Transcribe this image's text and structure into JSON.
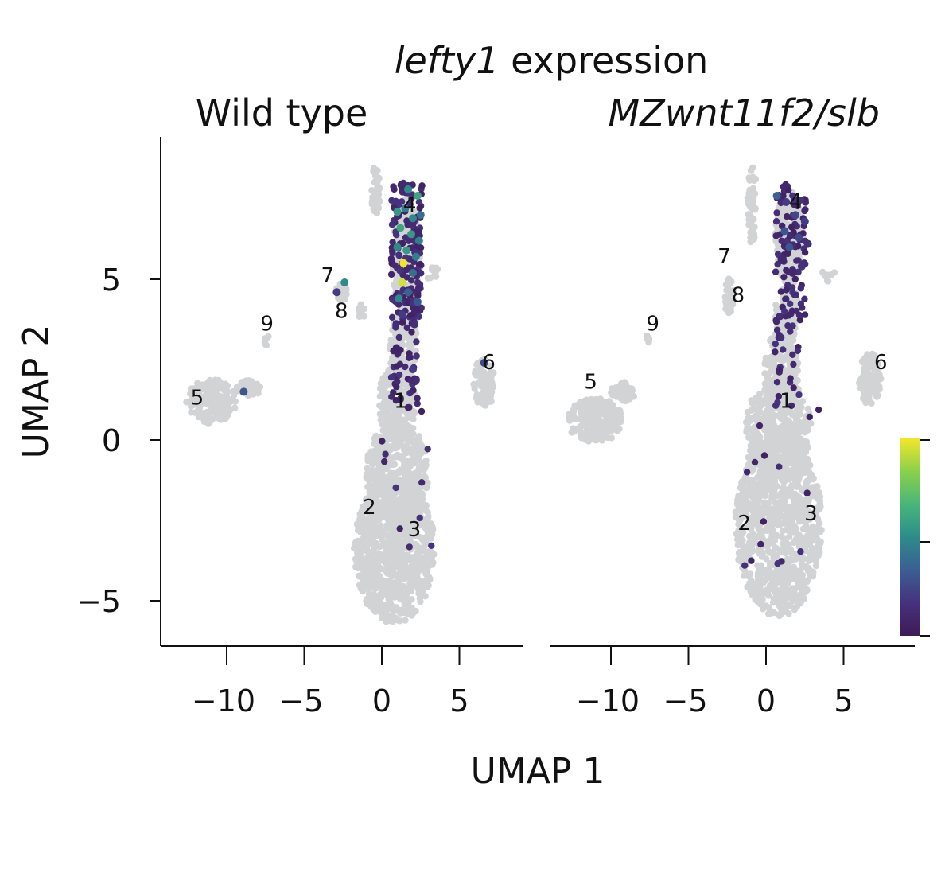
{
  "chart_data": {
    "type": "scatter",
    "title_gene": "lefty1",
    "title_rest": " expression",
    "xlabel": "UMAP 1",
    "ylabel": "UMAP 2",
    "xlim": [
      -14.5,
      9
    ],
    "ylim": [
      -6.5,
      9.5
    ],
    "xticks": [
      -10,
      -5,
      0,
      5
    ],
    "yticks": [
      -5,
      0,
      5
    ],
    "xtick_labels": [
      "−10",
      "−5",
      "0",
      "5"
    ],
    "ytick_labels": [
      "−5",
      "0",
      "5"
    ],
    "background_color": "#d2d3d5",
    "colorscale": [
      "#3e1a56",
      "#46327e",
      "#3b5e94",
      "#2d8c8a",
      "#48b67a",
      "#8ad14a",
      "#f3e62a"
    ],
    "panels": [
      {
        "title": "Wild type",
        "title_color": "#111111",
        "clusters": [
          {
            "label": "1",
            "x": 1.2,
            "y": 1.0
          },
          {
            "label": "2",
            "x": -0.8,
            "y": -2.3
          },
          {
            "label": "3",
            "x": 2.1,
            "y": -3.0
          },
          {
            "label": "4",
            "x": 1.8,
            "y": 7.1
          },
          {
            "label": "5",
            "x": -11.9,
            "y": 1.1
          },
          {
            "label": "6",
            "x": 6.9,
            "y": 2.2
          },
          {
            "label": "7",
            "x": -3.5,
            "y": 4.9
          },
          {
            "label": "8",
            "x": -2.6,
            "y": 3.8
          },
          {
            "label": "9",
            "x": -7.4,
            "y": 3.4
          }
        ],
        "expressing_cells": [
          {
            "x": 1.7,
            "y": 7.8,
            "v": 0.5
          },
          {
            "x": 2.3,
            "y": 7.6,
            "v": 0.6
          },
          {
            "x": 1.0,
            "y": 7.1,
            "v": 0.55
          },
          {
            "x": 1.5,
            "y": 7.2,
            "v": 0.45
          },
          {
            "x": 2.0,
            "y": 6.9,
            "v": 0.5
          },
          {
            "x": 2.5,
            "y": 7.0,
            "v": 0.4
          },
          {
            "x": 1.2,
            "y": 6.6,
            "v": 0.6
          },
          {
            "x": 1.9,
            "y": 6.4,
            "v": 0.55
          },
          {
            "x": 2.4,
            "y": 6.2,
            "v": 0.45
          },
          {
            "x": 1.0,
            "y": 6.0,
            "v": 0.5
          },
          {
            "x": 1.6,
            "y": 5.9,
            "v": 0.55
          },
          {
            "x": 2.2,
            "y": 5.7,
            "v": 0.45
          },
          {
            "x": 1.4,
            "y": 5.5,
            "v": 1.0
          },
          {
            "x": 1.3,
            "y": 4.9,
            "v": 0.95
          },
          {
            "x": 2.0,
            "y": 5.2,
            "v": 0.4
          },
          {
            "x": 1.1,
            "y": 4.4,
            "v": 0.5
          },
          {
            "x": 1.7,
            "y": 4.6,
            "v": 0.35
          },
          {
            "x": 2.3,
            "y": 4.3,
            "v": 0.3
          },
          {
            "x": -2.4,
            "y": 4.9,
            "v": 0.5
          },
          {
            "x": -2.9,
            "y": 4.6,
            "v": 0.2
          },
          {
            "x": 1.3,
            "y": 3.9,
            "v": 0.2
          },
          {
            "x": 2.1,
            "y": 3.6,
            "v": 0.15
          },
          {
            "x": -8.9,
            "y": 1.5,
            "v": 0.3
          },
          {
            "x": 6.6,
            "y": 2.4,
            "v": 0.25
          },
          {
            "x": 2.0,
            "y": 2.2,
            "v": 0.2
          }
        ]
      },
      {
        "title": "MZwnt11f2/slb",
        "title_color": "#c9a04e",
        "clusters": [
          {
            "label": "1",
            "x": 1.3,
            "y": 1.0
          },
          {
            "label": "2",
            "x": -1.4,
            "y": -2.8
          },
          {
            "label": "3",
            "x": 2.9,
            "y": -2.5
          },
          {
            "label": "4",
            "x": 1.9,
            "y": 7.2
          },
          {
            "label": "5",
            "x": -11.3,
            "y": 1.6
          },
          {
            "label": "6",
            "x": 7.4,
            "y": 2.2
          },
          {
            "label": "7",
            "x": -2.7,
            "y": 5.5
          },
          {
            "label": "8",
            "x": -1.8,
            "y": 4.3
          },
          {
            "label": "9",
            "x": -7.3,
            "y": 3.4
          }
        ],
        "expressing_cells": [
          {
            "x": 0.7,
            "y": 7.6,
            "v": 0.35
          },
          {
            "x": 1.3,
            "y": 7.4,
            "v": 0.2
          },
          {
            "x": 1.9,
            "y": 7.0,
            "v": 0.25
          },
          {
            "x": 2.5,
            "y": 6.8,
            "v": 0.2
          },
          {
            "x": 1.2,
            "y": 6.5,
            "v": 0.3
          },
          {
            "x": 2.1,
            "y": 6.3,
            "v": 0.25
          },
          {
            "x": 1.5,
            "y": 6.0,
            "v": 0.3
          },
          {
            "x": 2.7,
            "y": 6.1,
            "v": 0.15
          },
          {
            "x": 1.0,
            "y": 5.6,
            "v": 0.1
          },
          {
            "x": 2.3,
            "y": 5.4,
            "v": 0.15
          },
          {
            "x": 1.7,
            "y": 5.2,
            "v": 0.1
          }
        ]
      }
    ]
  }
}
